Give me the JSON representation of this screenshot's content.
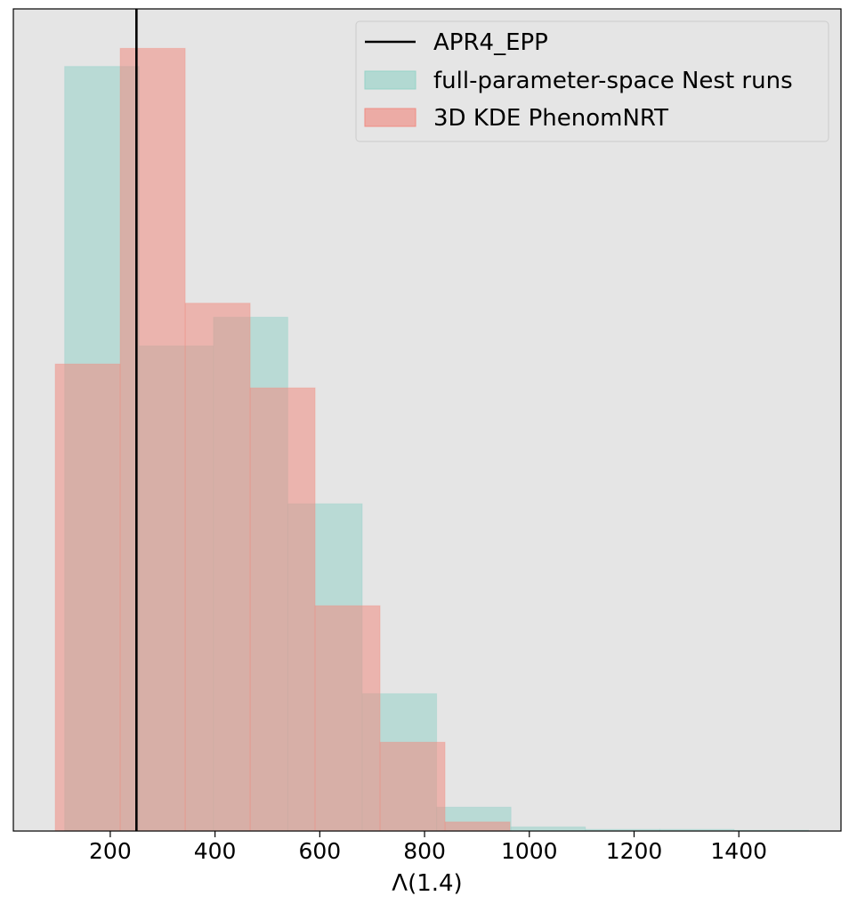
{
  "chart_data": {
    "type": "histogram",
    "title": "",
    "xlabel": "Λ(1.4)",
    "ylabel": "",
    "xlim": [
      15,
      1595
    ],
    "ylim": [
      0,
      1
    ],
    "yticks_shown": false,
    "xticks": [
      200,
      400,
      600,
      800,
      1000,
      1200,
      1400
    ],
    "grid": false,
    "background_color": "#e5e5e5",
    "legend_position": "upper right",
    "vline": {
      "name": "APR4_EPP",
      "x": 250,
      "color": "#000000"
    },
    "series": [
      {
        "name": "full-parameter-space Nest runs",
        "color": "#96d2c8",
        "opacity": 0.55,
        "bin_edges": [
          113,
          255,
          397,
          539,
          681,
          823,
          965,
          1107,
          1249,
          1391,
          1533
        ],
        "values": [
          0.93,
          0.59,
          0.625,
          0.398,
          0.167,
          0.029,
          0.005,
          0.002,
          0.002,
          0.001
        ]
      },
      {
        "name": "3D KDE PhenomNRT",
        "color": "#f08c82",
        "opacity": 0.55,
        "bin_edges": [
          95,
          219,
          343,
          467,
          591,
          715,
          839,
          963
        ],
        "values": [
          0.568,
          0.952,
          0.642,
          0.539,
          0.274,
          0.108,
          0.011
        ]
      }
    ]
  }
}
